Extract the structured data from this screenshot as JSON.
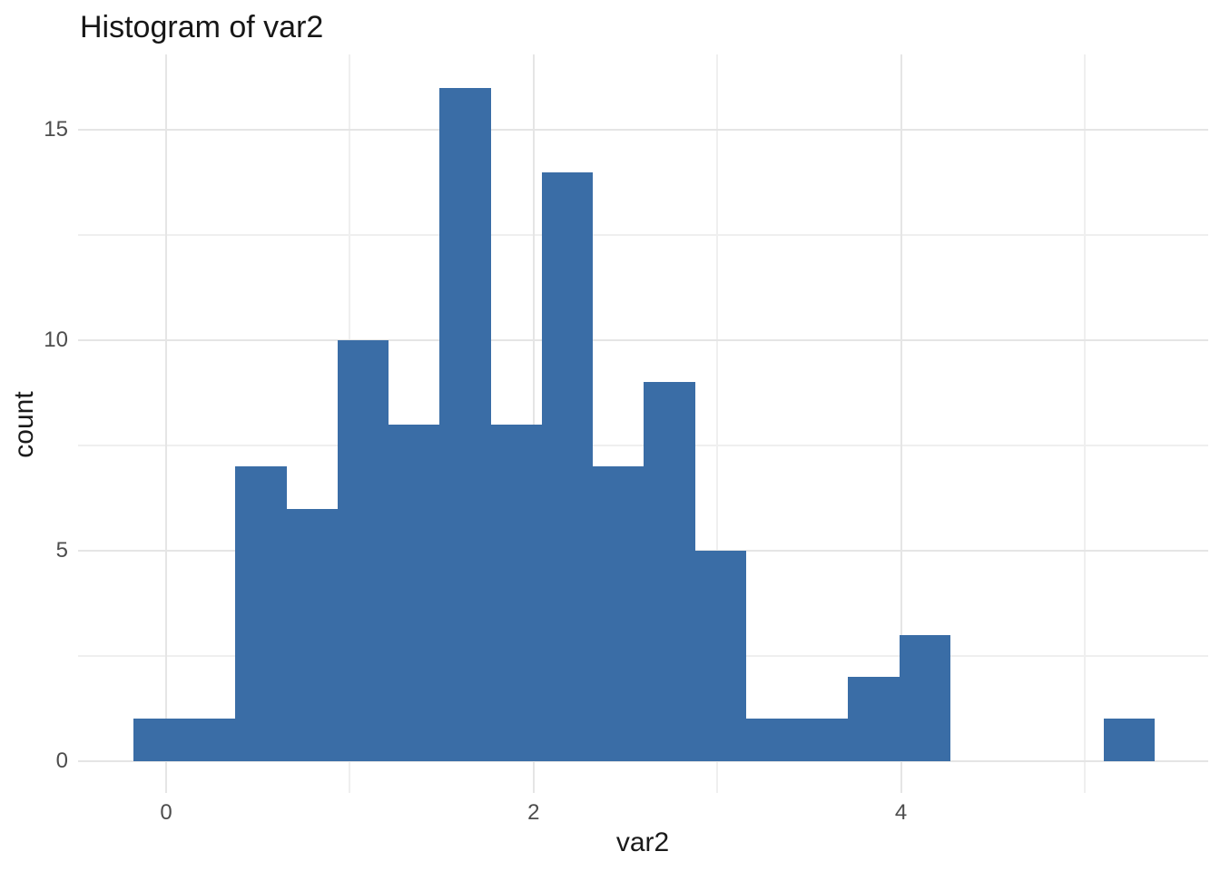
{
  "title": "Histogram of var2",
  "chart_data": {
    "type": "bar",
    "subtype": "histogram",
    "title": "Histogram of var2",
    "xlabel": "var2",
    "ylabel": "count",
    "bin_start": -0.18,
    "bin_width": 0.278,
    "counts": [
      1,
      1,
      7,
      6,
      10,
      8,
      16,
      8,
      14,
      7,
      9,
      5,
      1,
      1,
      2,
      3,
      0,
      0,
      0,
      1
    ],
    "total_n": 100,
    "x_major_ticks": [
      0,
      2,
      4
    ],
    "x_major_tick_labels": [
      "0",
      "2",
      "4"
    ],
    "x_minor_ticks": [
      1,
      3,
      5
    ],
    "y_major_ticks": [
      0,
      5,
      10,
      15
    ],
    "y_major_tick_labels": [
      "0",
      "5",
      "10",
      "15"
    ],
    "y_minor_ticks": [
      2.5,
      7.5,
      12.5
    ],
    "xlim": [
      -0.48,
      5.67
    ],
    "ylim": [
      -0.76,
      16.8
    ],
    "grid": "on",
    "legend": "none"
  },
  "colors": {
    "bar_fill": "#3a6da6",
    "grid_major": "#e5e5e5",
    "grid_minor": "#efefef",
    "tick_text": "#4d4d4d",
    "title_text": "#171717",
    "axis_title_text": "#1a1a1a",
    "background": "#ffffff"
  }
}
